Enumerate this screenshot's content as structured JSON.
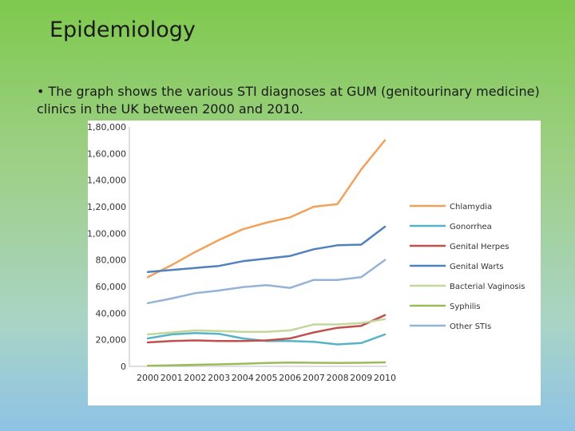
{
  "slide": {
    "title": "Epidemiology",
    "body": "• The graph shows the various STI diagnoses at GUM (genitourinary medicine) clinics in the UK between 2000 and 2010."
  },
  "chart_data": {
    "type": "line",
    "title": "",
    "xlabel": "",
    "ylabel": "",
    "x": [
      "2000",
      "2001",
      "2002",
      "2003",
      "2004",
      "2005",
      "2006",
      "2007",
      "2008",
      "2009",
      "2010"
    ],
    "ylim": [
      0,
      180000
    ],
    "yticks": [
      "0",
      "20,000",
      "40,000",
      "60,000",
      "80,000",
      "1,00,000",
      "1,20,000",
      "1,40,000",
      "1,60,000",
      "1,80,000"
    ],
    "grid": false,
    "legend_position": "right",
    "series": [
      {
        "name": "Chlamydia",
        "color": "#f0a25a",
        "values": [
          67000,
          76000,
          86000,
          95000,
          103000,
          108000,
          112000,
          120000,
          122000,
          148000,
          170000
        ]
      },
      {
        "name": "Gonorrhea",
        "color": "#56b3c8",
        "values": [
          21000,
          24000,
          25000,
          24500,
          21000,
          19000,
          19000,
          18500,
          16500,
          17500,
          24000
        ]
      },
      {
        "name": "Genital Herpes",
        "color": "#c0504d",
        "values": [
          18000,
          19000,
          19500,
          19000,
          19000,
          19500,
          21000,
          25500,
          29000,
          30500,
          38500
        ]
      },
      {
        "name": "Genital Warts",
        "color": "#4f81bd",
        "values": [
          71000,
          72500,
          74000,
          75500,
          79000,
          81000,
          83000,
          88000,
          91000,
          91500,
          105000
        ]
      },
      {
        "name": "Bacterial Vaginosis",
        "color": "#c4d79b",
        "values": [
          24000,
          25500,
          27000,
          26500,
          26000,
          26000,
          27000,
          31500,
          31500,
          32500,
          35500
        ]
      },
      {
        "name": "Syphilis",
        "color": "#9bbb59",
        "values": [
          500,
          800,
          1200,
          1500,
          2000,
          2500,
          2800,
          2700,
          2600,
          2700,
          3000
        ]
      },
      {
        "name": "Other STIs",
        "color": "#95b3d7",
        "values": [
          47500,
          51000,
          55000,
          57000,
          59500,
          61000,
          59000,
          65000,
          65000,
          67000,
          80000
        ]
      }
    ]
  }
}
